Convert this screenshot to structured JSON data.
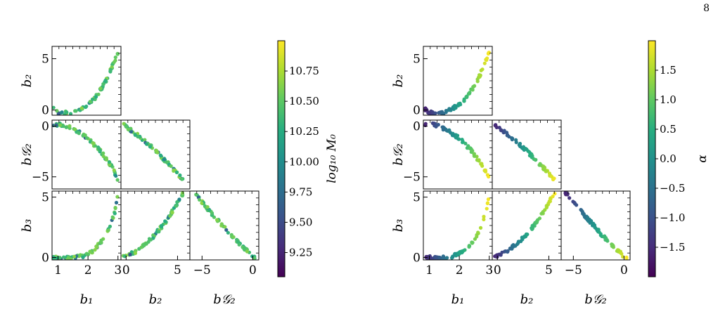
{
  "page_number": "8",
  "chart_data": [
    {
      "type": "scatter",
      "layout": "corner-plot",
      "variables": [
        "b1",
        "b2",
        "bG2",
        "b3"
      ],
      "axis_labels": {
        "b1": "b₁",
        "b2": "b₂",
        "bG2": "b𝒢₂",
        "b3": "b₃"
      },
      "ranges": {
        "b1": [
          0.8,
          3.1
        ],
        "b2": [
          -0.5,
          6.2
        ],
        "bG2": [
          -6.2,
          0.6
        ],
        "b3": [
          -0.2,
          5.5
        ]
      },
      "ticks": {
        "b1": [
          "1",
          "2",
          "3"
        ],
        "b2": [
          "0",
          "5"
        ],
        "bG2": [
          "−5",
          "0"
        ],
        "b3": [
          "0",
          "5"
        ]
      },
      "colorbar": {
        "label": "log₁₀ M₀",
        "colormap": "viridis",
        "range": [
          9.05,
          11.0
        ],
        "ticks": [
          "9.25",
          "9.50",
          "9.75",
          "10.00",
          "10.25",
          "10.50",
          "10.75"
        ]
      },
      "relations": {
        "b2_vs_b1": [
          [
            0.85,
            0.1
          ],
          [
            1.0,
            -0.25
          ],
          [
            1.4,
            -0.3
          ],
          [
            1.8,
            0.2
          ],
          [
            2.2,
            1.0
          ],
          [
            2.6,
            2.8
          ],
          [
            3.0,
            5.6
          ]
        ],
        "bG2_vs_b1": [
          [
            0.85,
            0.2
          ],
          [
            1.2,
            0.15
          ],
          [
            1.6,
            -0.4
          ],
          [
            2.0,
            -1.2
          ],
          [
            2.4,
            -2.4
          ],
          [
            2.8,
            -4.0
          ],
          [
            3.0,
            -5.3
          ]
        ],
        "b3_vs_b1": [
          [
            0.85,
            0.0
          ],
          [
            1.3,
            -0.05
          ],
          [
            1.8,
            0.1
          ],
          [
            2.2,
            0.6
          ],
          [
            2.6,
            1.8
          ],
          [
            2.9,
            3.8
          ],
          [
            3.0,
            5.4
          ]
        ],
        "bG2_vs_b2": [
          [
            -0.3,
            0.2
          ],
          [
            1.0,
            -0.8
          ],
          [
            2.5,
            -2.1
          ],
          [
            4.0,
            -3.6
          ],
          [
            5.6,
            -5.3
          ]
        ],
        "b3_vs_b2": [
          [
            -0.3,
            0.0
          ],
          [
            1.0,
            0.5
          ],
          [
            2.5,
            1.6
          ],
          [
            4.0,
            3.1
          ],
          [
            5.6,
            5.4
          ]
        ],
        "b3_vs_bG2": [
          [
            -5.8,
            5.4
          ],
          [
            -4.0,
            3.6
          ],
          [
            -2.0,
            1.7
          ],
          [
            0.0,
            0.1
          ],
          [
            0.3,
            -0.1
          ]
        ]
      }
    },
    {
      "type": "scatter",
      "layout": "corner-plot",
      "variables": [
        "b1",
        "b2",
        "bG2",
        "b3"
      ],
      "axis_labels": {
        "b1": "b₁",
        "b2": "b₂",
        "bG2": "b𝒢₂",
        "b3": "b₃"
      },
      "ranges": {
        "b1": [
          0.8,
          3.1
        ],
        "b2": [
          -0.5,
          6.2
        ],
        "bG2": [
          -6.2,
          0.6
        ],
        "b3": [
          -0.2,
          5.5
        ]
      },
      "ticks": {
        "b1": [
          "1",
          "2",
          "3"
        ],
        "b2": [
          "0",
          "5"
        ],
        "bG2": [
          "−5",
          "0"
        ],
        "b3": [
          "0",
          "5"
        ]
      },
      "colorbar": {
        "label": "α",
        "colormap": "viridis",
        "range": [
          -2.0,
          2.0
        ],
        "ticks": [
          "−1.5",
          "−1.0",
          "−0.5",
          "0.0",
          "0.5",
          "1.0",
          "1.5"
        ]
      },
      "relations": {
        "b2_vs_b1": [
          [
            0.85,
            0.1
          ],
          [
            1.0,
            -0.25
          ],
          [
            1.4,
            -0.3
          ],
          [
            1.8,
            0.2
          ],
          [
            2.2,
            1.0
          ],
          [
            2.6,
            2.8
          ],
          [
            3.0,
            5.6
          ]
        ],
        "bG2_vs_b1": [
          [
            0.85,
            0.2
          ],
          [
            1.2,
            0.15
          ],
          [
            1.6,
            -0.4
          ],
          [
            2.0,
            -1.2
          ],
          [
            2.4,
            -2.4
          ],
          [
            2.8,
            -4.0
          ],
          [
            3.0,
            -5.3
          ]
        ],
        "b3_vs_b1": [
          [
            0.85,
            0.0
          ],
          [
            1.3,
            -0.05
          ],
          [
            1.8,
            0.1
          ],
          [
            2.2,
            0.6
          ],
          [
            2.6,
            1.8
          ],
          [
            2.9,
            3.8
          ],
          [
            3.0,
            5.4
          ]
        ],
        "bG2_vs_b2": [
          [
            -0.3,
            0.2
          ],
          [
            1.0,
            -0.8
          ],
          [
            2.5,
            -2.1
          ],
          [
            4.0,
            -3.6
          ],
          [
            5.6,
            -5.3
          ]
        ],
        "b3_vs_b2": [
          [
            -0.3,
            0.0
          ],
          [
            1.0,
            0.5
          ],
          [
            2.5,
            1.6
          ],
          [
            4.0,
            3.1
          ],
          [
            5.6,
            5.4
          ]
        ],
        "b3_vs_bG2": [
          [
            -5.8,
            5.4
          ],
          [
            -4.0,
            3.6
          ],
          [
            -2.0,
            1.7
          ],
          [
            0.0,
            0.1
          ],
          [
            0.3,
            -0.1
          ]
        ]
      }
    }
  ]
}
